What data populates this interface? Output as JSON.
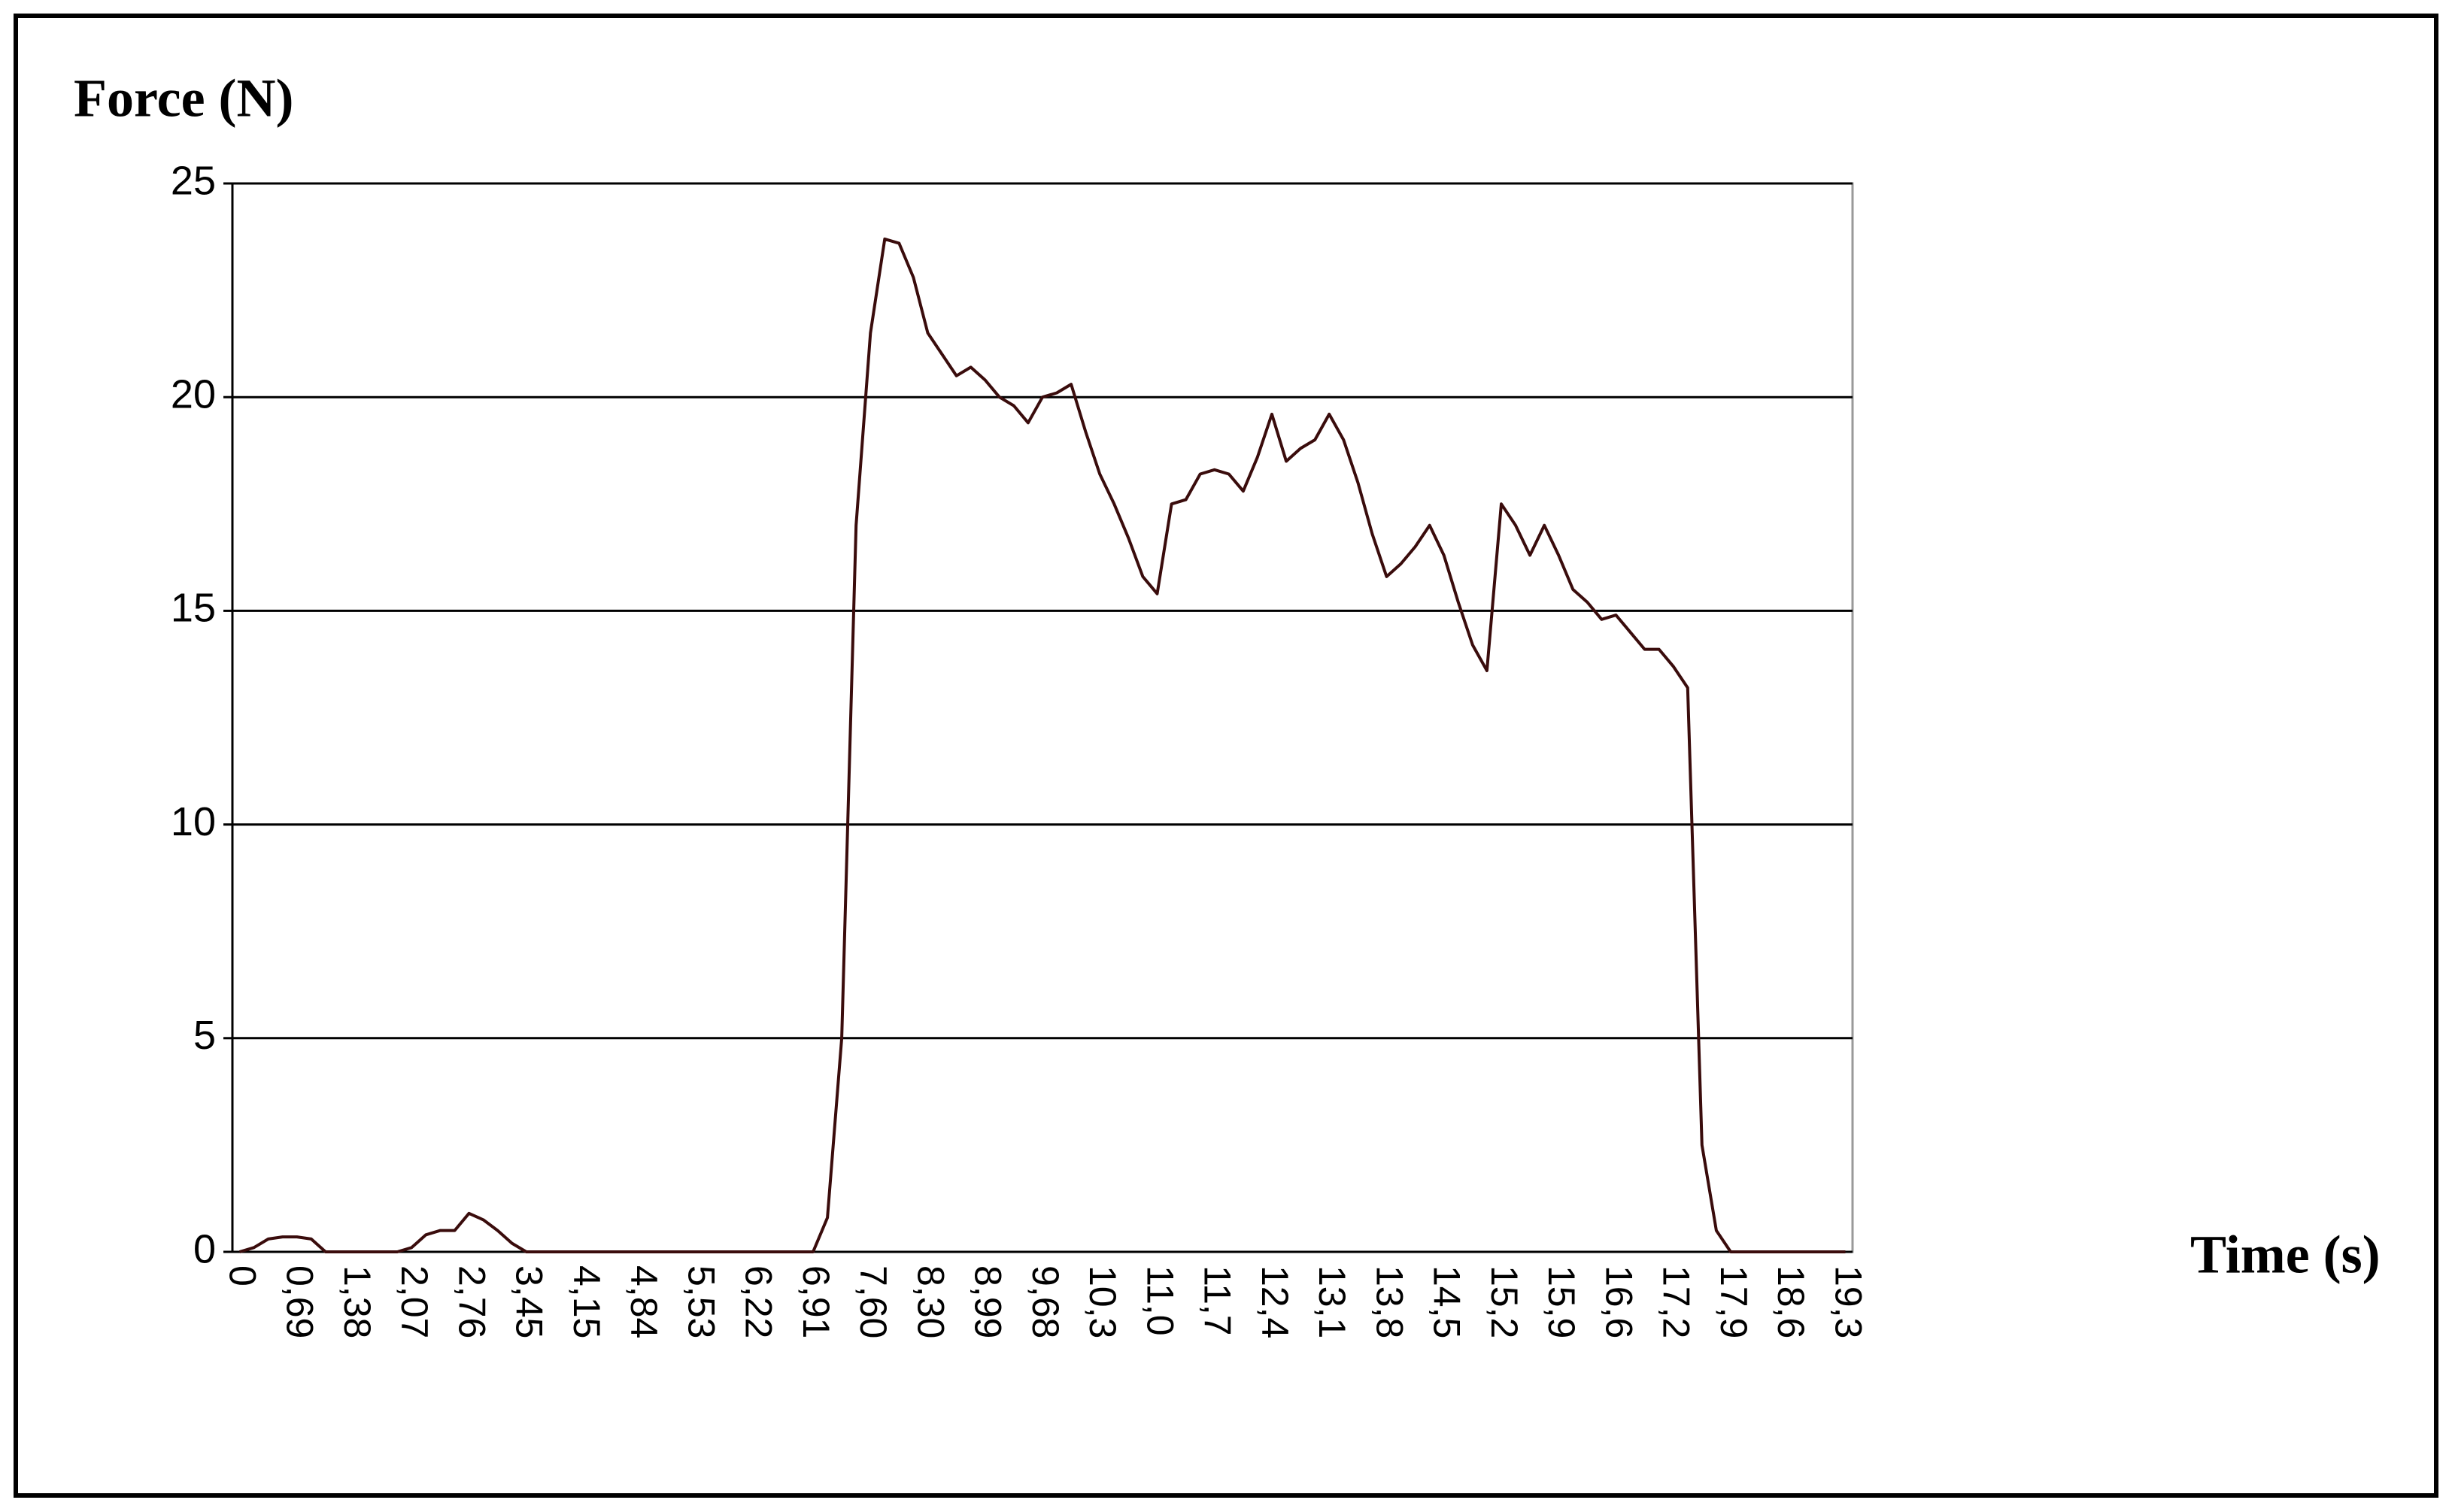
{
  "chart_data": {
    "type": "line",
    "y_label": "Force (N)",
    "x_label": "Time (s)",
    "categories": [
      "0",
      null,
      null,
      null,
      "0,69",
      null,
      null,
      null,
      "1,38",
      null,
      null,
      null,
      "2,07",
      null,
      null,
      null,
      "2,76",
      null,
      null,
      null,
      "3,45",
      null,
      null,
      null,
      "4,15",
      null,
      null,
      null,
      "4,84",
      null,
      null,
      null,
      "5,53",
      null,
      null,
      null,
      "6,22",
      null,
      null,
      null,
      "6,91",
      null,
      null,
      null,
      "7,60",
      null,
      null,
      null,
      "8,30",
      null,
      null,
      null,
      "8,99",
      null,
      null,
      null,
      "9,68",
      null,
      null,
      null,
      "10,3",
      null,
      null,
      null,
      "11,0",
      null,
      null,
      null,
      "11,7",
      null,
      null,
      null,
      "12,4",
      null,
      null,
      null,
      "13,1",
      null,
      null,
      null,
      "13,8",
      null,
      null,
      null,
      "14,5",
      null,
      null,
      null,
      "15,2",
      null,
      null,
      null,
      "15,9",
      null,
      null,
      null,
      "16,6",
      null,
      null,
      null,
      "17,2",
      null,
      null,
      null,
      "17,9",
      null,
      null,
      null,
      "18,6",
      null,
      null,
      null,
      "19,3"
    ],
    "values": [
      0,
      0.1,
      0.3,
      0.35,
      0.35,
      0.3,
      0,
      0,
      0,
      0,
      0,
      0,
      0.1,
      0.4,
      0.5,
      0.5,
      0.9,
      0.75,
      0.5,
      0.2,
      0,
      0,
      0,
      0,
      0,
      0,
      0,
      0,
      0,
      0,
      0,
      0,
      0,
      0,
      0,
      0,
      0,
      0,
      0,
      0,
      0,
      0.8,
      5,
      17,
      21.5,
      23.7,
      23.6,
      22.8,
      21.5,
      21,
      20.5,
      20.7,
      20.4,
      20,
      19.8,
      19.4,
      20,
      20.1,
      20.3,
      19.2,
      18.2,
      17.5,
      16.7,
      15.8,
      15.4,
      17.5,
      17.6,
      18.2,
      18.3,
      18.2,
      17.8,
      18.6,
      19.6,
      18.5,
      18.8,
      19,
      19.6,
      19,
      18,
      16.8,
      15.8,
      16.1,
      16.5,
      17,
      16.3,
      15.2,
      14.2,
      13.6,
      17.5,
      17,
      16.3,
      17,
      16.3,
      15.5,
      15.2,
      14.8,
      14.9,
      14.5,
      14.1,
      14.1,
      13.7,
      13.2,
      2.5,
      0.5,
      0,
      0,
      0,
      0,
      0,
      0,
      0,
      0,
      0
    ],
    "color": "#3a0c0c",
    "ylim": [
      0,
      25
    ],
    "yticks": [
      0,
      5,
      10,
      15,
      20,
      25
    ],
    "grid": true
  }
}
